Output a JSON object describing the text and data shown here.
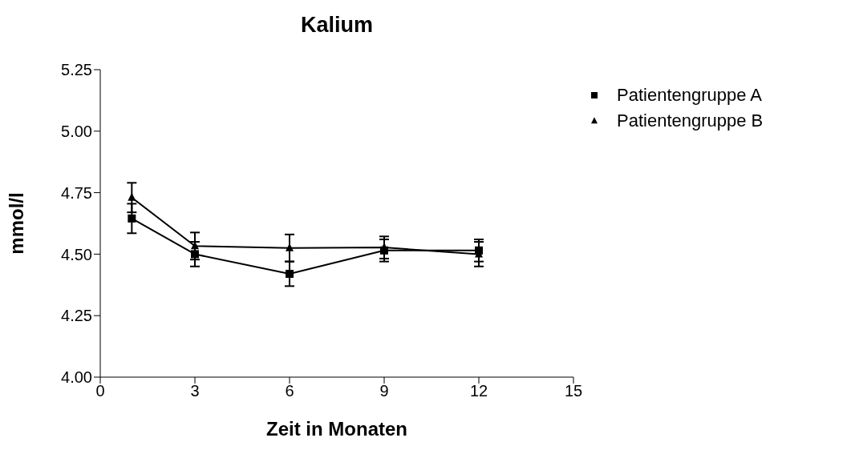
{
  "chart_data": {
    "type": "line",
    "title": "Kalium",
    "xlabel": "Zeit in Monaten",
    "ylabel": "mmol/l",
    "x": [
      1,
      3,
      6,
      9,
      12
    ],
    "series": [
      {
        "name": "Patientengruppe A",
        "color": "#000000",
        "marker": "square",
        "values": [
          4.645,
          4.5,
          4.42,
          4.515,
          4.515
        ],
        "errors": [
          0.06,
          0.05,
          0.05,
          0.045,
          0.045
        ]
      },
      {
        "name": "Patientengruppe B",
        "color": "#000000",
        "marker": "triangle",
        "values": [
          4.73,
          4.533,
          4.525,
          4.527,
          4.5
        ],
        "errors": [
          0.06,
          0.055,
          0.055,
          0.045,
          0.05
        ]
      }
    ],
    "xlim": [
      0,
      15
    ],
    "xticks": [
      0,
      3,
      6,
      9,
      12,
      15
    ],
    "ylim": [
      4.0,
      5.25
    ],
    "yticks": [
      {
        "value": 4.0,
        "label": "4.00"
      },
      {
        "value": 4.25,
        "label": "4.25"
      },
      {
        "value": 4.5,
        "label": "4.50"
      },
      {
        "value": 4.75,
        "label": "4.75"
      },
      {
        "value": 5.0,
        "label": "5.00"
      },
      {
        "value": 5.25,
        "label": "5.25"
      }
    ],
    "legend": "right",
    "grid": false,
    "line_style": "solid"
  }
}
